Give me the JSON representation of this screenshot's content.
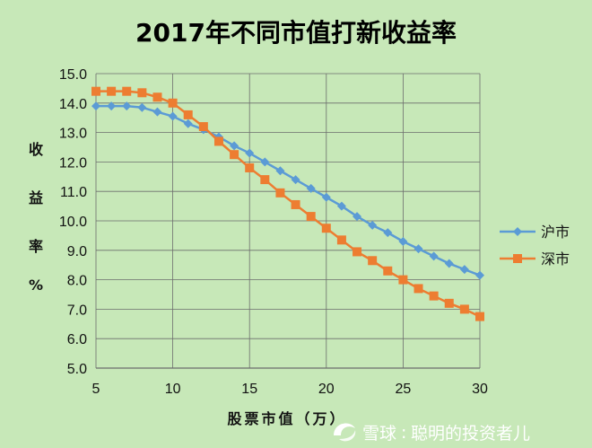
{
  "chart_data": {
    "type": "line",
    "title": "2017年不同市值打新收益率",
    "xlabel": "股票市值（万）",
    "ylabel": "收益率%",
    "x": [
      5,
      6,
      7,
      8,
      9,
      10,
      11,
      12,
      13,
      14,
      15,
      16,
      17,
      18,
      19,
      20,
      21,
      22,
      23,
      24,
      25,
      26,
      27,
      28,
      29,
      30
    ],
    "xlim": [
      5,
      30
    ],
    "ylim": [
      5.0,
      15.0
    ],
    "x_ticks": [
      "5",
      "10",
      "15",
      "20",
      "25",
      "30"
    ],
    "y_ticks": [
      "5.0",
      "6.0",
      "7.0",
      "8.0",
      "9.0",
      "10.0",
      "11.0",
      "12.0",
      "13.0",
      "14.0",
      "15.0"
    ],
    "grid": true,
    "legend_position": "right",
    "series": [
      {
        "name": "沪市",
        "color": "#5b9bd5",
        "marker": "diamond",
        "values": [
          13.9,
          13.9,
          13.9,
          13.85,
          13.7,
          13.55,
          13.3,
          13.1,
          12.85,
          12.55,
          12.3,
          12.0,
          11.7,
          11.4,
          11.1,
          10.8,
          10.5,
          10.15,
          9.85,
          9.6,
          9.3,
          9.05,
          8.8,
          8.55,
          8.35,
          8.15
        ]
      },
      {
        "name": "深市",
        "color": "#ed7d31",
        "marker": "square",
        "values": [
          14.4,
          14.4,
          14.4,
          14.35,
          14.2,
          14.0,
          13.6,
          13.2,
          12.7,
          12.25,
          11.8,
          11.4,
          10.95,
          10.55,
          10.15,
          9.75,
          9.35,
          8.95,
          8.65,
          8.3,
          8.0,
          7.7,
          7.45,
          7.2,
          7.0,
          6.75
        ]
      }
    ]
  },
  "watermark": {
    "brand": "雪球",
    "author": "聪明的投资者儿",
    "icon": "snowball-logo-icon"
  }
}
